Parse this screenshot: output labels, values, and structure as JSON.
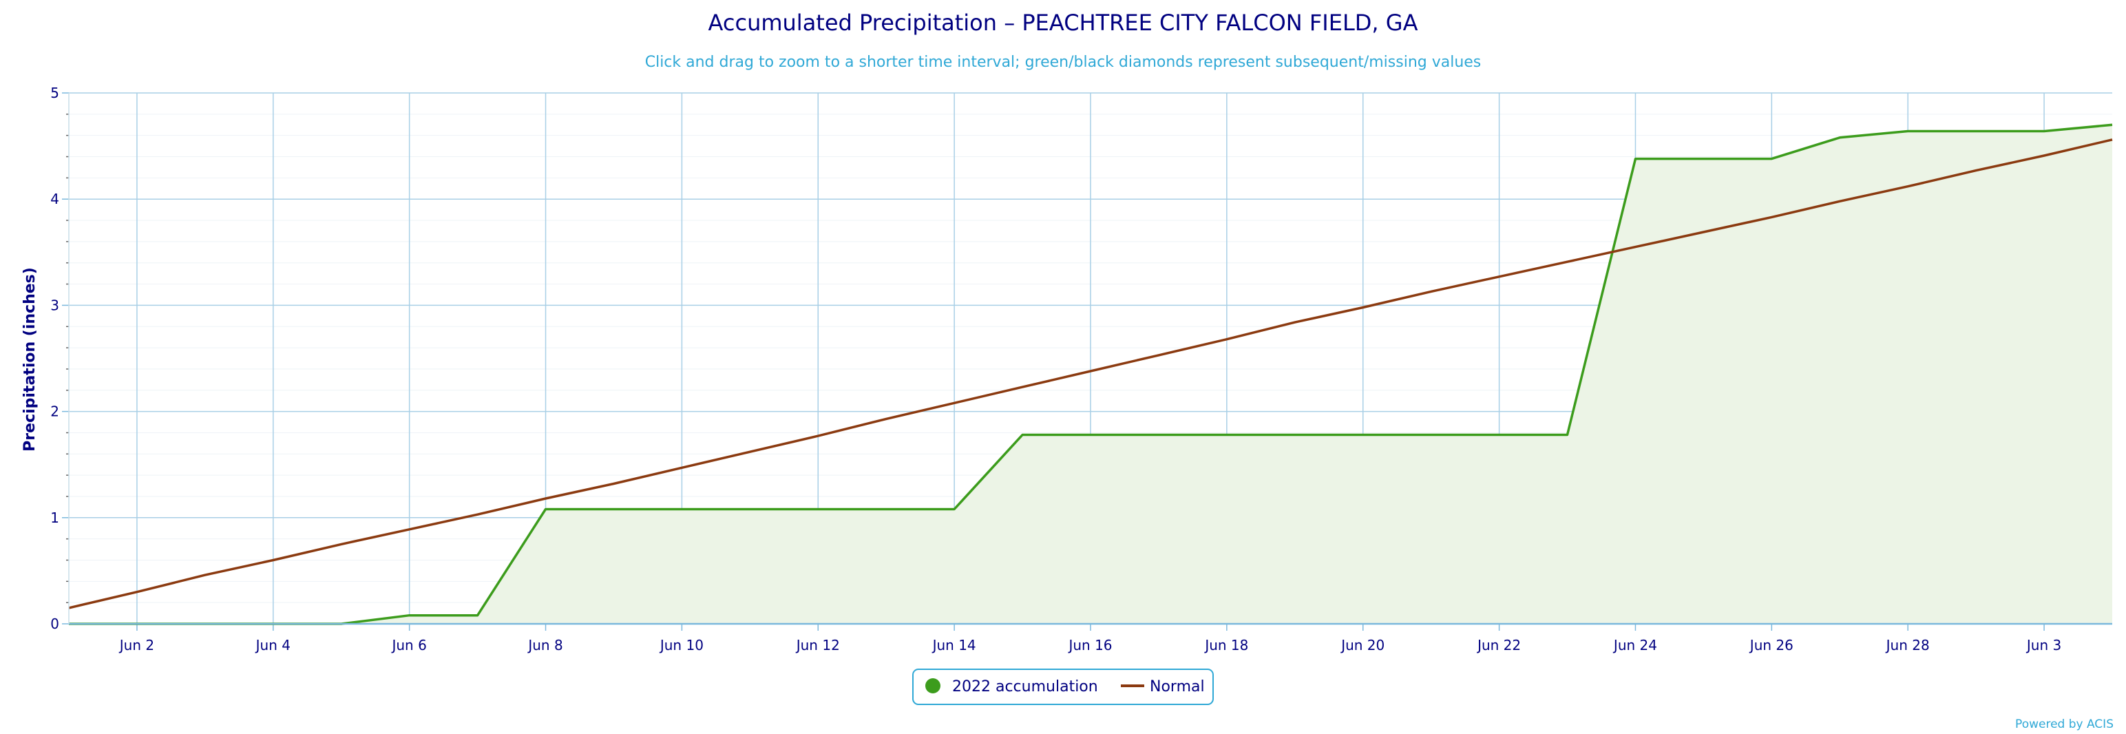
{
  "chart_data": {
    "type": "line",
    "title": "Accumulated Precipitation – PEACHTREE CITY FALCON FIELD, GA",
    "subtitle": "Click and drag to zoom to a shorter time interval; green/black diamonds represent subsequent/missing values",
    "ylabel": "Precipitation (inches)",
    "xlabel": "",
    "ylim": [
      0,
      5
    ],
    "xlim": [
      1,
      31
    ],
    "yticks": [
      0,
      1,
      2,
      3,
      4,
      5
    ],
    "xticks": [
      2,
      4,
      6,
      8,
      10,
      12,
      14,
      16,
      18,
      20,
      22,
      24,
      26,
      28,
      30
    ],
    "xtick_labels": [
      "Jun 2",
      "Jun 4",
      "Jun 6",
      "Jun 8",
      "Jun 10",
      "Jun 12",
      "Jun 14",
      "Jun 16",
      "Jun 18",
      "Jun 20",
      "Jun 22",
      "Jun 24",
      "Jun 26",
      "Jun 28",
      "Jun 3"
    ],
    "grid": true,
    "legend_position": "bottom-center",
    "colors": {
      "accumulation": "#3c9c1c",
      "accumulation_fill": "#ecf4e6",
      "normal": "#8b3a10",
      "grid": "#a8cfe6",
      "axis": "#7ab8dd"
    },
    "series": [
      {
        "name": "2022 accumulation",
        "x": [
          1,
          2,
          3,
          4,
          5,
          6,
          7,
          8,
          9,
          10,
          11,
          12,
          13,
          14,
          15,
          16,
          17,
          18,
          19,
          20,
          21,
          22,
          23,
          24,
          25,
          26,
          27,
          28,
          29,
          30,
          31
        ],
        "values": [
          0,
          0,
          0,
          0,
          0,
          0.08,
          0.08,
          1.08,
          1.08,
          1.08,
          1.08,
          1.08,
          1.08,
          1.08,
          1.78,
          1.78,
          1.78,
          1.78,
          1.78,
          1.78,
          1.78,
          1.78,
          1.78,
          4.38,
          4.38,
          4.38,
          4.58,
          4.64,
          4.64,
          4.64,
          4.7
        ]
      },
      {
        "name": "Normal",
        "x": [
          1,
          2,
          3,
          4,
          5,
          6,
          7,
          8,
          9,
          10,
          11,
          12,
          13,
          14,
          15,
          16,
          17,
          18,
          19,
          20,
          21,
          22,
          23,
          24,
          25,
          26,
          27,
          28,
          29,
          30,
          31
        ],
        "values": [
          0.15,
          0.3,
          0.46,
          0.6,
          0.75,
          0.89,
          1.03,
          1.18,
          1.32,
          1.47,
          1.62,
          1.77,
          1.93,
          2.08,
          2.23,
          2.38,
          2.53,
          2.68,
          2.84,
          2.98,
          3.13,
          3.27,
          3.41,
          3.55,
          3.69,
          3.83,
          3.98,
          4.12,
          4.27,
          4.41,
          4.56
        ]
      }
    ],
    "credits": "Powered by ACIS"
  }
}
